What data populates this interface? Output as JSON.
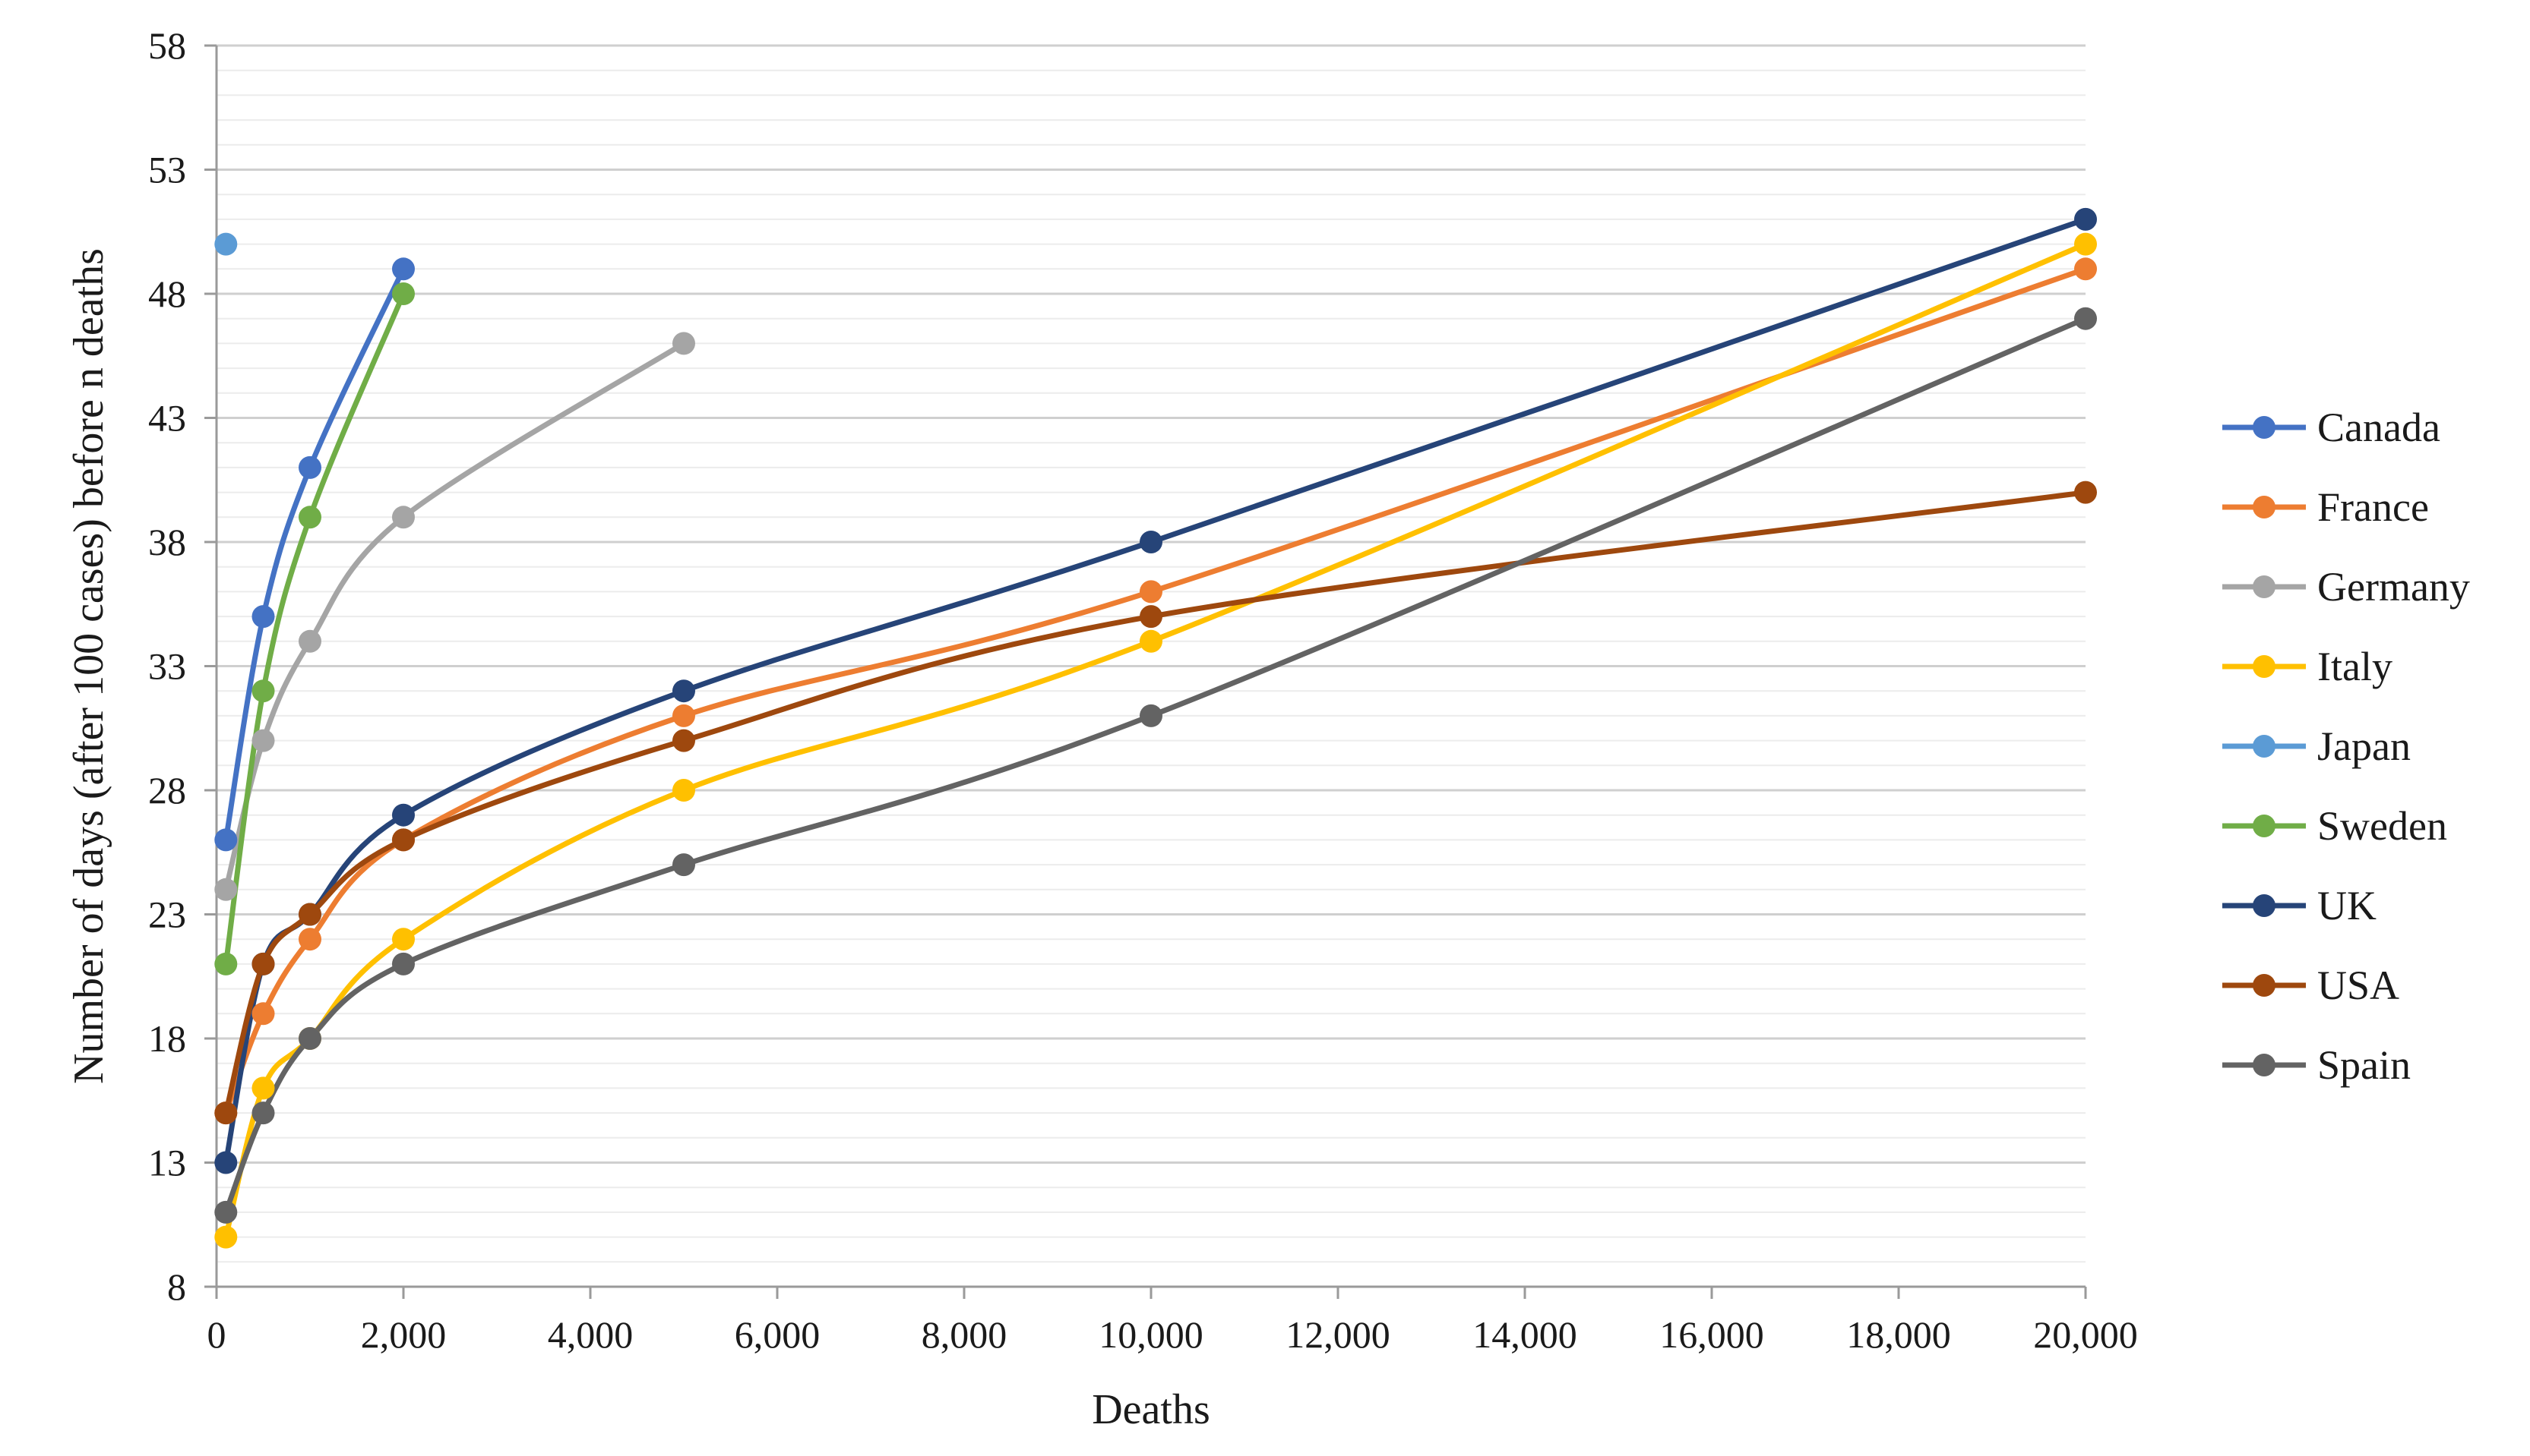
{
  "chart_data": {
    "type": "line",
    "xlabel": "Deaths",
    "ylabel": "Number of days (after 100 cases) before n deaths",
    "xlim": [
      0,
      20000
    ],
    "ylim": [
      8,
      58
    ],
    "x_ticks": [
      0,
      2000,
      4000,
      6000,
      8000,
      10000,
      12000,
      14000,
      16000,
      18000,
      20000
    ],
    "x_tick_labels": [
      "0",
      "2,000",
      "4,000",
      "6,000",
      "8,000",
      "10,000",
      "12,000",
      "14,000",
      "16,000",
      "18,000",
      "20,000"
    ],
    "y_ticks": [
      8,
      13,
      18,
      23,
      28,
      33,
      38,
      43,
      48,
      53,
      58
    ],
    "y_tick_labels": [
      "8",
      "13",
      "18",
      "23",
      "28",
      "33",
      "38",
      "43",
      "48",
      "53",
      "58"
    ],
    "grid": "horizontal",
    "smoothed": true,
    "legend_position": "right",
    "series": [
      {
        "name": "Canada",
        "color": "#4472C4",
        "points": [
          [
            100,
            26
          ],
          [
            500,
            35
          ],
          [
            1000,
            41
          ],
          [
            2000,
            49
          ]
        ]
      },
      {
        "name": "France",
        "color": "#ED7D31",
        "points": [
          [
            100,
            15
          ],
          [
            500,
            19
          ],
          [
            1000,
            22
          ],
          [
            2000,
            26
          ],
          [
            5000,
            31
          ],
          [
            10000,
            36
          ],
          [
            20000,
            49
          ]
        ]
      },
      {
        "name": "Germany",
        "color": "#A5A5A5",
        "points": [
          [
            100,
            24
          ],
          [
            500,
            30
          ],
          [
            1000,
            34
          ],
          [
            2000,
            39
          ],
          [
            5000,
            46
          ]
        ]
      },
      {
        "name": "Italy",
        "color": "#FFC000",
        "points": [
          [
            100,
            10
          ],
          [
            500,
            16
          ],
          [
            1000,
            18
          ],
          [
            2000,
            22
          ],
          [
            5000,
            28
          ],
          [
            10000,
            34
          ],
          [
            20000,
            50
          ]
        ]
      },
      {
        "name": "Japan",
        "color": "#5B9BD5",
        "points": [
          [
            100,
            50
          ]
        ]
      },
      {
        "name": "Sweden",
        "color": "#70AD47",
        "points": [
          [
            100,
            21
          ],
          [
            500,
            32
          ],
          [
            1000,
            39
          ],
          [
            2000,
            48
          ]
        ]
      },
      {
        "name": "UK",
        "color": "#264478",
        "points": [
          [
            100,
            13
          ],
          [
            500,
            21
          ],
          [
            1000,
            23
          ],
          [
            2000,
            27
          ],
          [
            5000,
            32
          ],
          [
            10000,
            38
          ],
          [
            20000,
            51
          ]
        ]
      },
      {
        "name": "USA",
        "color": "#9E480E",
        "points": [
          [
            100,
            15
          ],
          [
            500,
            21
          ],
          [
            1000,
            23
          ],
          [
            2000,
            26
          ],
          [
            5000,
            30
          ],
          [
            10000,
            35
          ],
          [
            20000,
            40
          ]
        ]
      },
      {
        "name": "Spain",
        "color": "#636363",
        "points": [
          [
            100,
            11
          ],
          [
            500,
            15
          ],
          [
            1000,
            18
          ],
          [
            2000,
            21
          ],
          [
            5000,
            25
          ],
          [
            10000,
            31
          ],
          [
            20000,
            47
          ]
        ]
      }
    ]
  }
}
